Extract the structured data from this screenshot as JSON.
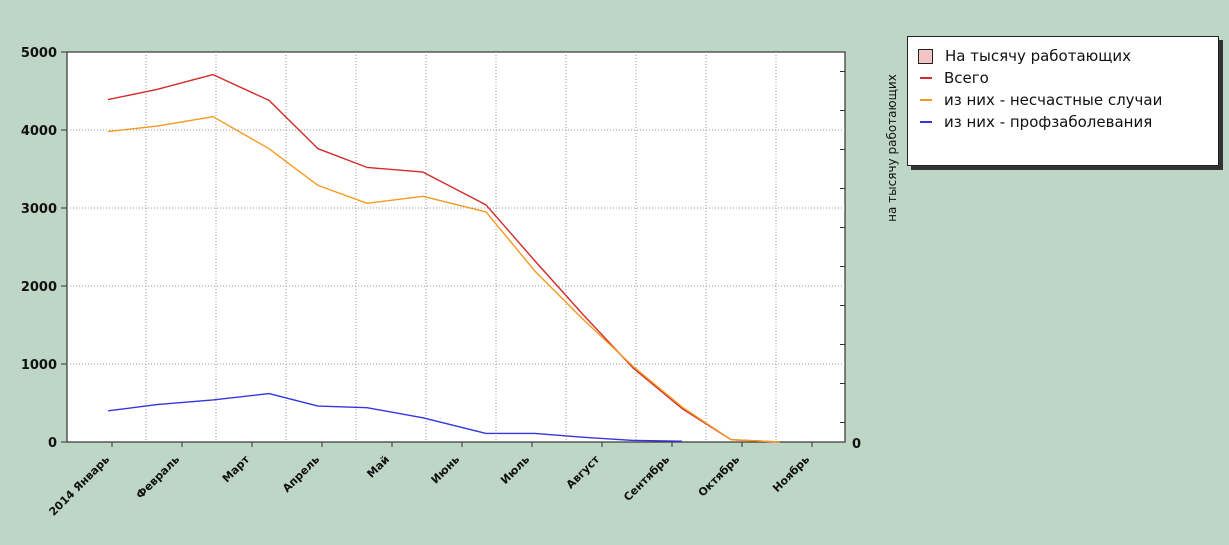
{
  "chart_data": {
    "type": "line",
    "categories": [
      "2014 Январь",
      "Февраль",
      "Март",
      "Апрель",
      "Май",
      "Июнь",
      "Июль",
      "Август",
      "Сентябрь",
      "Октябрь",
      "Ноябрь"
    ],
    "x": [
      0,
      0.7,
      1.5,
      2.3,
      3.0,
      3.7,
      4.5,
      5.4,
      6.1,
      6.8,
      7.5,
      8.2,
      8.9,
      9.6
    ],
    "series": [
      {
        "name": "Всего",
        "color": "#d42a2a",
        "values": [
          4390,
          4520,
          4710,
          4380,
          3760,
          3520,
          3460,
          3040,
          2320,
          1620,
          950,
          430,
          30,
          0
        ]
      },
      {
        "name": "из них - несчастные случаи",
        "color": "#f39a22",
        "values": [
          3980,
          4050,
          4170,
          3760,
          3290,
          3060,
          3150,
          2950,
          2190,
          1560,
          970,
          450,
          30,
          0
        ]
      },
      {
        "name": "из них - профзаболевания",
        "color": "#3535e0",
        "values": [
          400,
          480,
          540,
          620,
          460,
          440,
          310,
          110,
          110,
          60,
          20,
          10,
          null,
          null
        ]
      }
    ],
    "ylim": [
      0,
      5000
    ],
    "y_ticks": [
      "0",
      "1000",
      "2000",
      "3000",
      "4000",
      "5000"
    ],
    "y2_ticks": [
      "0"
    ],
    "y2label": "на тысячу работающих",
    "grid": true,
    "legend_placement": "top-right"
  },
  "legend": {
    "title": "На тысячу работающих",
    "items": [
      {
        "label": "Всего",
        "color": "#d42a2a"
      },
      {
        "label": "из них - несчастные случаи",
        "color": "#f39a22"
      },
      {
        "label": "из них - профзаболевания",
        "color": "#3535e0"
      }
    ]
  }
}
